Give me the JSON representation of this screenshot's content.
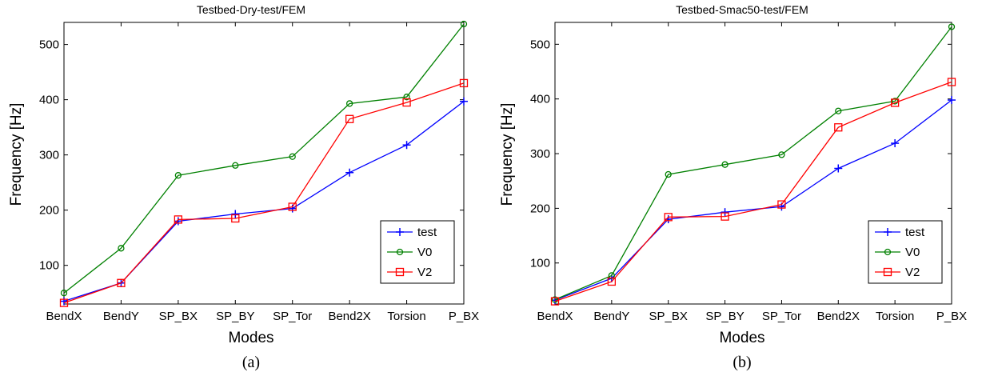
{
  "chart_data": [
    {
      "type": "line",
      "title": "Testbed-Dry-test/FEM",
      "xlabel": "Modes",
      "ylabel": "Frequency [Hz]",
      "caption": "(a)",
      "categories": [
        "BendX",
        "BendY",
        "SP_BX",
        "SP_BY",
        "SP_Tor",
        "Bend2X",
        "Torsion",
        "P_BX"
      ],
      "ylim": [
        30,
        540
      ],
      "yticks": [
        100,
        200,
        300,
        400,
        500
      ],
      "legend_position": "bottom-right",
      "series": [
        {
          "name": "test",
          "color": "#0000ff",
          "marker": "plus",
          "values": [
            35,
            68,
            180,
            193,
            203,
            268,
            318,
            397
          ]
        },
        {
          "name": "V0",
          "color": "#008000",
          "marker": "circle",
          "values": [
            50,
            131,
            263,
            281,
            297,
            393,
            405,
            537
          ]
        },
        {
          "name": "V2",
          "color": "#ff0000",
          "marker": "square",
          "values": [
            32,
            68,
            183,
            185,
            206,
            365,
            395,
            430
          ]
        }
      ]
    },
    {
      "type": "line",
      "title": "Testbed-Smac50-test/FEM",
      "xlabel": "Modes",
      "ylabel": "Frequency [Hz]",
      "caption": "(b)",
      "categories": [
        "BendX",
        "BendY",
        "SP_BX",
        "SP_BY",
        "SP_Tor",
        "Bend2X",
        "Torsion",
        "P_BX"
      ],
      "ylim": [
        25,
        540
      ],
      "yticks": [
        100,
        200,
        300,
        400,
        500
      ],
      "legend_position": "bottom-right",
      "series": [
        {
          "name": "test",
          "color": "#0000ff",
          "marker": "plus",
          "values": [
            32,
            72,
            180,
            193,
            203,
            273,
            319,
            398
          ]
        },
        {
          "name": "V0",
          "color": "#008000",
          "marker": "circle",
          "values": [
            33,
            77,
            262,
            280,
            298,
            378,
            396,
            532
          ]
        },
        {
          "name": "V2",
          "color": "#ff0000",
          "marker": "square",
          "values": [
            30,
            66,
            184,
            185,
            207,
            348,
            393,
            431
          ]
        }
      ]
    }
  ]
}
